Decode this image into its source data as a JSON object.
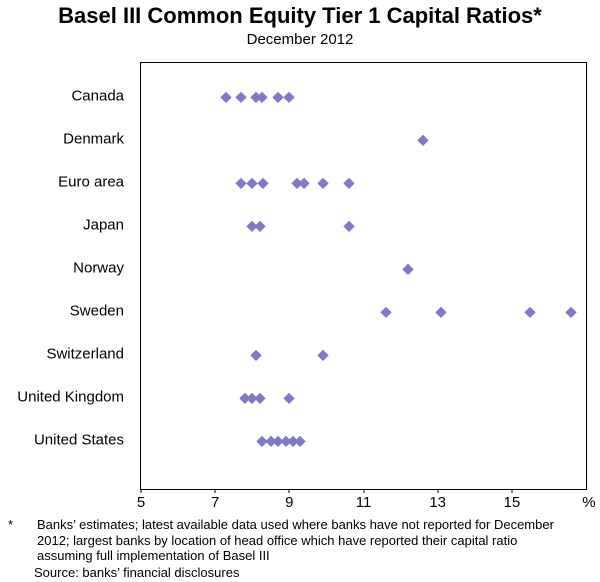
{
  "chart_data": {
    "type": "scatter",
    "title": "Basel III Common Equity Tier 1 Capital Ratios*",
    "subtitle": "December 2012",
    "marker_color": "#7e7ac6",
    "x_axis": {
      "min": 5,
      "max": 17,
      "ticks": [
        5,
        7,
        9,
        11,
        13,
        15
      ],
      "unit_label": "%"
    },
    "categories": [
      "Canada",
      "Denmark",
      "Euro area",
      "Japan",
      "Norway",
      "Sweden",
      "Switzerland",
      "United Kingdom",
      "United States"
    ],
    "series": [
      {
        "category": "Canada",
        "values": [
          7.3,
          7.7,
          8.1,
          8.25,
          8.7,
          9.0
        ]
      },
      {
        "category": "Denmark",
        "values": [
          12.6
        ]
      },
      {
        "category": "Euro area",
        "values": [
          7.7,
          8.0,
          8.3,
          9.2,
          9.4,
          9.9,
          10.6
        ]
      },
      {
        "category": "Japan",
        "values": [
          8.0,
          8.2,
          10.6
        ]
      },
      {
        "category": "Norway",
        "values": [
          12.2
        ]
      },
      {
        "category": "Sweden",
        "values": [
          11.6,
          13.1,
          15.5,
          16.6
        ]
      },
      {
        "category": "Switzerland",
        "values": [
          8.1,
          9.9
        ]
      },
      {
        "category": "United Kingdom",
        "values": [
          7.8,
          8.0,
          8.2,
          9.0
        ]
      },
      {
        "category": "United States",
        "values": [
          8.25,
          8.5,
          8.7,
          8.9,
          9.1,
          9.3
        ]
      }
    ]
  },
  "footnote": {
    "marker": "*",
    "text": "Banks’ estimates; latest available data used where banks have not reported for December 2012; largest banks by location of head office which have reported their capital ratio assuming full implementation of Basel III",
    "source": "Source: banks’ financial disclosures"
  }
}
